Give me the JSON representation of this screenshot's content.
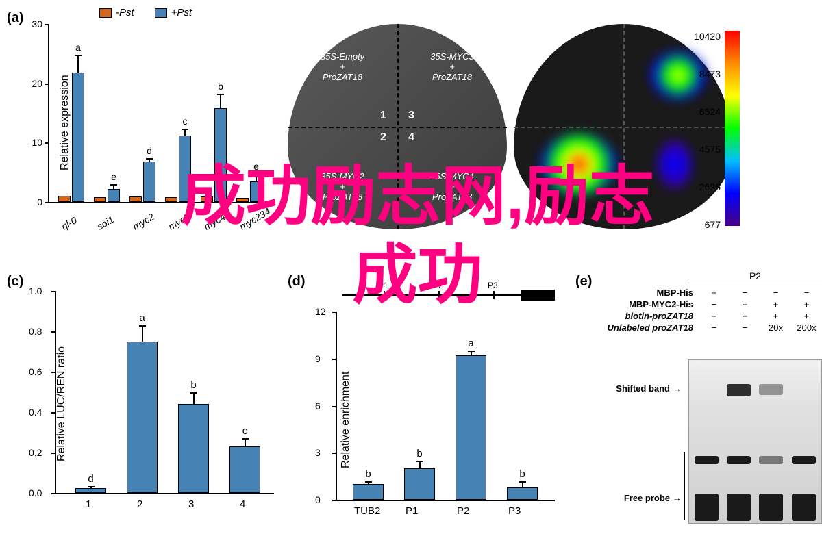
{
  "watermark": {
    "line1": "成功励志网,励志",
    "line2": "成功"
  },
  "panelA": {
    "label": "(a)",
    "ylabel": "Relative expression",
    "legend": [
      {
        "label": "-Pst",
        "color": "#d2691e"
      },
      {
        "label": "+Pst",
        "color": "#4682b4"
      }
    ],
    "ylim": [
      0,
      30
    ],
    "ytick_step": 10,
    "categories": [
      "ql-0",
      "soi1",
      "myc2",
      "myc3",
      "myc4",
      "myc234"
    ],
    "bar_colors": [
      "#d2691e",
      "#4682b4"
    ],
    "series": [
      {
        "minus": 1.0,
        "plus": 21.8,
        "err": 3.0,
        "sig": "a"
      },
      {
        "minus": 0.8,
        "plus": 2.2,
        "err": 0.8,
        "sig": "e"
      },
      {
        "minus": 0.9,
        "plus": 6.8,
        "err": 0.6,
        "sig": "d"
      },
      {
        "minus": 0.8,
        "plus": 11.2,
        "err": 1.2,
        "sig": "c"
      },
      {
        "minus": 0.9,
        "plus": 15.8,
        "err": 2.4,
        "sig": "b"
      },
      {
        "minus": 0.7,
        "plus": 3.5,
        "err": 1.2,
        "sig": "e"
      }
    ]
  },
  "panelB": {
    "label": "(b)",
    "quadrants": [
      {
        "text": "35S-Empty\n+\nProZAT18",
        "num": "1"
      },
      {
        "text": "35S-MYC3\n+\nProZAT18",
        "num": "3"
      },
      {
        "text": "35S-MYC2\n+\nProZAT18",
        "num": "2"
      },
      {
        "text": "35S-MYC4\n+\nProZAT18",
        "num": "4"
      }
    ],
    "colorbar": {
      "values": [
        10420,
        8473,
        6524,
        4575,
        2626,
        677
      ]
    }
  },
  "panelC": {
    "label": "(c)",
    "ylabel": "Relative LUC/REN ratio",
    "ylim": [
      0,
      1.0
    ],
    "ytick_step": 0.2,
    "categories": [
      "1",
      "2",
      "3",
      "4"
    ],
    "bar_color": "#4682b4",
    "values": [
      {
        "val": 0.025,
        "err": 0.01,
        "sig": "d"
      },
      {
        "val": 0.75,
        "err": 0.08,
        "sig": "a"
      },
      {
        "val": 0.44,
        "err": 0.06,
        "sig": "b"
      },
      {
        "val": 0.23,
        "err": 0.04,
        "sig": "c"
      }
    ]
  },
  "panelD": {
    "label": "(d)",
    "ylabel": "Relative enrichment",
    "ylim": [
      0,
      12
    ],
    "ytick_step": 3,
    "categories": [
      "TUB2",
      "P1",
      "P2",
      "P3"
    ],
    "gene_regions": [
      "P1",
      "P2",
      "P3"
    ],
    "bar_color": "#4682b4",
    "values": [
      {
        "val": 1.0,
        "err": 0.2,
        "sig": "b"
      },
      {
        "val": 2.0,
        "err": 0.5,
        "sig": "b"
      },
      {
        "val": 9.2,
        "err": 0.3,
        "sig": "a"
      },
      {
        "val": 0.8,
        "err": 0.4,
        "sig": "b"
      }
    ]
  },
  "panelE": {
    "label": "(e)",
    "p2_label": "P2",
    "rows": [
      {
        "label": "MBP-His",
        "vals": [
          "+",
          "−",
          "−",
          "−"
        ]
      },
      {
        "label": "MBP-MYC2-His",
        "vals": [
          "−",
          "+",
          "+",
          "+"
        ]
      },
      {
        "label": "biotin-proZAT18",
        "vals": [
          "+",
          "+",
          "+",
          "+"
        ]
      },
      {
        "label": "Unlabeled proZAT18",
        "vals": [
          "−",
          "−",
          "20x",
          "200x"
        ]
      }
    ],
    "shifted_label": "Shifted band",
    "free_label": "Free probe"
  }
}
